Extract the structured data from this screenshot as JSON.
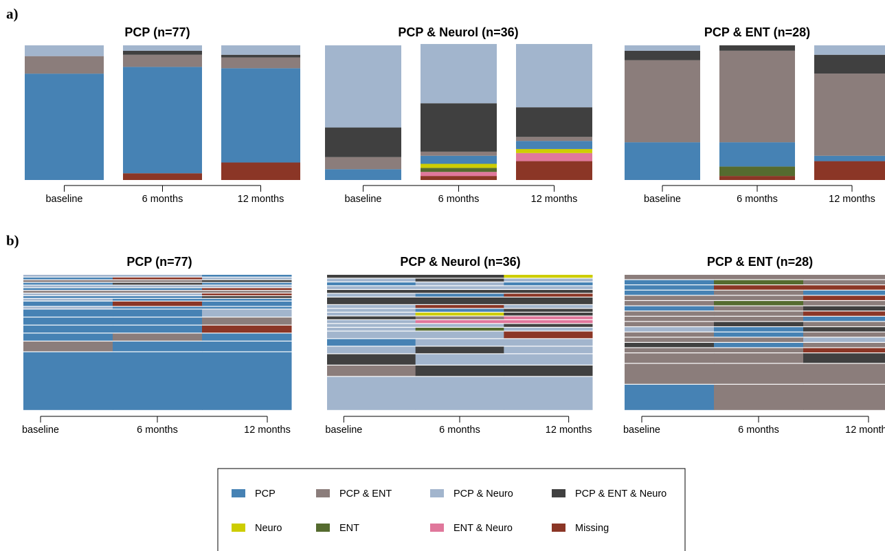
{
  "panels": [
    {
      "label": "a)"
    },
    {
      "label": "b)"
    }
  ],
  "categories": [
    "PCP",
    "PCP & ENT",
    "PCP & Neuro",
    "PCP & ENT & Neuro",
    "Neuro",
    "ENT",
    "ENT & Neuro",
    "Missing"
  ],
  "colors": {
    "PCP": "#4682b4",
    "PCP & ENT": "#8b7d7b",
    "PCP & Neuro": "#a2b5cd",
    "PCP & ENT & Neuro": "#404040",
    "Neuro": "#cdcd00",
    "ENT": "#556b2f",
    "ENT & Neuro": "#e0779b",
    "Missing": "#8b3626"
  },
  "legend": {
    "items": [
      "PCP",
      "PCP & ENT",
      "PCP & Neuro",
      "PCP & ENT & Neuro",
      "Neuro",
      "ENT",
      "ENT & Neuro",
      "Missing"
    ]
  },
  "chart_data": [
    {
      "type": "bar",
      "stacked": true,
      "panel": "a)",
      "title": "PCP (n=77)",
      "categories": [
        "baseline",
        "6 months",
        "12 months"
      ],
      "ylim": [
        0,
        1
      ],
      "series": [
        {
          "name": "PCP",
          "values": [
            0.79,
            0.79,
            0.7
          ]
        },
        {
          "name": "PCP & ENT",
          "values": [
            0.13,
            0.09,
            0.08
          ]
        },
        {
          "name": "PCP & Neuro",
          "values": [
            0.08,
            0.04,
            0.07
          ]
        },
        {
          "name": "PCP & ENT & Neuro",
          "values": [
            0.0,
            0.03,
            0.02
          ]
        },
        {
          "name": "Neuro",
          "values": [
            0.0,
            0.0,
            0.0
          ]
        },
        {
          "name": "ENT",
          "values": [
            0.0,
            0.0,
            0.0
          ]
        },
        {
          "name": "ENT & Neuro",
          "values": [
            0.0,
            0.0,
            0.0
          ]
        },
        {
          "name": "Missing",
          "values": [
            0.0,
            0.05,
            0.13
          ]
        }
      ]
    },
    {
      "type": "bar",
      "stacked": true,
      "panel": "a)",
      "title": "PCP & Neurol (n=36)",
      "categories": [
        "baseline",
        "6 months",
        "12 months"
      ],
      "ylim": [
        0,
        1
      ],
      "series": [
        {
          "name": "PCP",
          "values": [
            0.08,
            0.06,
            0.06
          ]
        },
        {
          "name": "PCP & ENT",
          "values": [
            0.09,
            0.03,
            0.03
          ]
        },
        {
          "name": "PCP & Neuro",
          "values": [
            0.61,
            0.44,
            0.47
          ]
        },
        {
          "name": "PCP & ENT & Neuro",
          "values": [
            0.22,
            0.36,
            0.22
          ]
        },
        {
          "name": "Neuro",
          "values": [
            0.0,
            0.03,
            0.03
          ]
        },
        {
          "name": "ENT",
          "values": [
            0.0,
            0.03,
            0.0
          ]
        },
        {
          "name": "ENT & Neuro",
          "values": [
            0.0,
            0.03,
            0.06
          ]
        },
        {
          "name": "Missing",
          "values": [
            0.0,
            0.03,
            0.14
          ]
        }
      ]
    },
    {
      "type": "bar",
      "stacked": true,
      "panel": "a)",
      "title": "PCP & ENT (n=28)",
      "categories": [
        "baseline",
        "6 months",
        "12 months"
      ],
      "ylim": [
        0,
        1
      ],
      "series": [
        {
          "name": "PCP",
          "values": [
            0.28,
            0.18,
            0.04
          ]
        },
        {
          "name": "PCP & ENT",
          "values": [
            0.61,
            0.68,
            0.61
          ]
        },
        {
          "name": "PCP & Neuro",
          "values": [
            0.04,
            0.0,
            0.07
          ]
        },
        {
          "name": "PCP & ENT & Neuro",
          "values": [
            0.07,
            0.04,
            0.14
          ]
        },
        {
          "name": "Neuro",
          "values": [
            0.0,
            0.0,
            0.0
          ]
        },
        {
          "name": "ENT",
          "values": [
            0.0,
            0.07,
            0.0
          ]
        },
        {
          "name": "ENT & Neuro",
          "values": [
            0.0,
            0.0,
            0.0
          ]
        },
        {
          "name": "Missing",
          "values": [
            0.0,
            0.03,
            0.14
          ]
        }
      ]
    },
    {
      "type": "table",
      "panel": "b)",
      "title": "PCP (n=77)",
      "columns": [
        "baseline",
        "6 months",
        "12 months"
      ],
      "sequences": [
        {
          "states": [
            "PCP & Neuro",
            "PCP & Neuro",
            "PCP"
          ],
          "count": 1
        },
        {
          "states": [
            "PCP",
            "Missing",
            "PCP & Neuro"
          ],
          "count": 1
        },
        {
          "states": [
            "PCP & ENT",
            "PCP & ENT",
            "PCP & ENT & Neuro"
          ],
          "count": 1
        },
        {
          "states": [
            "PCP",
            "PCP & ENT & Neuro",
            "PCP"
          ],
          "count": 1
        },
        {
          "states": [
            "PCP & Neuro",
            "PCP & Neuro",
            "PCP & Neuro"
          ],
          "count": 1
        },
        {
          "states": [
            "PCP",
            "PCP",
            "Missing"
          ],
          "count": 1
        },
        {
          "states": [
            "PCP & ENT",
            "PCP & ENT",
            "PCP & ENT"
          ],
          "count": 1
        },
        {
          "states": [
            "PCP & Neuro",
            "PCP & Neuro",
            "Missing"
          ],
          "count": 1
        },
        {
          "states": [
            "PCP",
            "PCP",
            "PCP & ENT & Neuro"
          ],
          "count": 1
        },
        {
          "states": [
            "PCP & Neuro",
            "PCP",
            "PCP"
          ],
          "count": 1
        },
        {
          "states": [
            "PCP",
            "Missing",
            "PCP"
          ],
          "count": 2
        },
        {
          "states": [
            "PCP & Neuro",
            "PCP",
            "PCP"
          ],
          "count": 1
        },
        {
          "states": [
            "PCP",
            "PCP",
            "PCP & Neuro"
          ],
          "count": 3
        },
        {
          "states": [
            "PCP",
            "PCP",
            "PCP & ENT"
          ],
          "count": 3
        },
        {
          "states": [
            "PCP",
            "PCP",
            "Missing"
          ],
          "count": 3
        },
        {
          "states": [
            "PCP",
            "PCP & ENT",
            "PCP"
          ],
          "count": 3
        },
        {
          "states": [
            "PCP & ENT",
            "PCP",
            "PCP"
          ],
          "count": 4
        },
        {
          "states": [
            "PCP",
            "PCP",
            "PCP"
          ],
          "count": 22
        }
      ]
    },
    {
      "type": "table",
      "panel": "b)",
      "title": "PCP & Neurol (n=36)",
      "columns": [
        "baseline",
        "6 months",
        "12 months"
      ],
      "sequences": [
        {
          "states": [
            "PCP & ENT & Neuro",
            "PCP & ENT & Neuro",
            "Neuro"
          ],
          "count": 1
        },
        {
          "states": [
            "PCP & Neuro",
            "PCP & ENT & Neuro",
            "PCP & Neuro"
          ],
          "count": 1
        },
        {
          "states": [
            "PCP",
            "PCP & Neuro",
            "PCP"
          ],
          "count": 1
        },
        {
          "states": [
            "PCP & Neuro",
            "PCP & Neuro",
            "PCP & Neuro"
          ],
          "count": 1
        },
        {
          "states": [
            "PCP & ENT & Neuro",
            "PCP & ENT & Neuro",
            "PCP & ENT & Neuro"
          ],
          "count": 1
        },
        {
          "states": [
            "PCP & Neuro",
            "PCP",
            "Missing"
          ],
          "count": 1
        },
        {
          "states": [
            "PCP & ENT & Neuro",
            "PCP & ENT & Neuro",
            "PCP & ENT & Neuro"
          ],
          "count": 2
        },
        {
          "states": [
            "PCP & Neuro",
            "Missing",
            "PCP & Neuro"
          ],
          "count": 1
        },
        {
          "states": [
            "PCP & Neuro",
            "PCP",
            "PCP & ENT & Neuro"
          ],
          "count": 1
        },
        {
          "states": [
            "PCP & Neuro",
            "Neuro",
            "PCP & ENT & Neuro"
          ],
          "count": 1
        },
        {
          "states": [
            "PCP & ENT & Neuro",
            "PCP & ENT",
            "ENT & Neuro"
          ],
          "count": 1
        },
        {
          "states": [
            "PCP & Neuro",
            "ENT & Neuro",
            "ENT & Neuro"
          ],
          "count": 1
        },
        {
          "states": [
            "PCP & Neuro",
            "PCP & Neuro",
            "PCP & ENT & Neuro"
          ],
          "count": 1
        },
        {
          "states": [
            "PCP & Neuro",
            "ENT",
            "PCP & Neuro"
          ],
          "count": 1
        },
        {
          "states": [
            "PCP & Neuro",
            "PCP & Neuro",
            "Missing"
          ],
          "count": 2
        },
        {
          "states": [
            "PCP",
            "PCP & Neuro",
            "PCP & Neuro"
          ],
          "count": 2
        },
        {
          "states": [
            "PCP & Neuro",
            "PCP & ENT & Neuro",
            "PCP & Neuro"
          ],
          "count": 2
        },
        {
          "states": [
            "PCP & ENT & Neuro",
            "PCP & Neuro",
            "PCP & Neuro"
          ],
          "count": 3
        },
        {
          "states": [
            "PCP & ENT",
            "PCP & ENT & Neuro",
            "PCP & ENT & Neuro"
          ],
          "count": 3
        },
        {
          "states": [
            "PCP & Neuro",
            "PCP & Neuro",
            "PCP & Neuro"
          ],
          "count": 9
        }
      ]
    },
    {
      "type": "table",
      "panel": "b)",
      "title": "PCP & ENT (n=28)",
      "columns": [
        "baseline",
        "6 months",
        "12 months"
      ],
      "sequences": [
        {
          "states": [
            "PCP & ENT",
            "PCP & ENT",
            "PCP & ENT"
          ],
          "count": 1
        },
        {
          "states": [
            "PCP",
            "ENT",
            "PCP & ENT"
          ],
          "count": 1
        },
        {
          "states": [
            "PCP",
            "Missing",
            "Missing"
          ],
          "count": 1
        },
        {
          "states": [
            "PCP",
            "PCP & ENT",
            "PCP"
          ],
          "count": 1
        },
        {
          "states": [
            "PCP & ENT",
            "PCP & ENT",
            "Missing"
          ],
          "count": 1
        },
        {
          "states": [
            "PCP & ENT",
            "ENT",
            "PCP & ENT"
          ],
          "count": 1
        },
        {
          "states": [
            "PCP",
            "PCP & ENT",
            "PCP & ENT & Neuro"
          ],
          "count": 1
        },
        {
          "states": [
            "PCP & ENT",
            "PCP & ENT",
            "Missing"
          ],
          "count": 1
        },
        {
          "states": [
            "PCP & ENT",
            "PCP & ENT",
            "PCP"
          ],
          "count": 1
        },
        {
          "states": [
            "PCP & ENT",
            "PCP & ENT & Neuro",
            "PCP & ENT"
          ],
          "count": 1
        },
        {
          "states": [
            "PCP & Neuro",
            "PCP",
            "PCP & ENT & Neuro"
          ],
          "count": 1
        },
        {
          "states": [
            "PCP & ENT",
            "PCP",
            "PCP & ENT"
          ],
          "count": 1
        },
        {
          "states": [
            "PCP & ENT",
            "PCP & ENT",
            "PCP & Neuro"
          ],
          "count": 1
        },
        {
          "states": [
            "PCP & ENT & Neuro",
            "PCP",
            "PCP & ENT"
          ],
          "count": 1
        },
        {
          "states": [
            "PCP & ENT",
            "PCP & ENT",
            "Missing"
          ],
          "count": 1
        },
        {
          "states": [
            "PCP & ENT",
            "PCP & ENT",
            "PCP & ENT & Neuro"
          ],
          "count": 2
        },
        {
          "states": [
            "PCP & ENT",
            "PCP & ENT",
            "PCP & ENT"
          ],
          "count": 4
        },
        {
          "states": [
            "PCP",
            "PCP & ENT",
            "PCP & ENT"
          ],
          "count": 5
        }
      ]
    }
  ]
}
